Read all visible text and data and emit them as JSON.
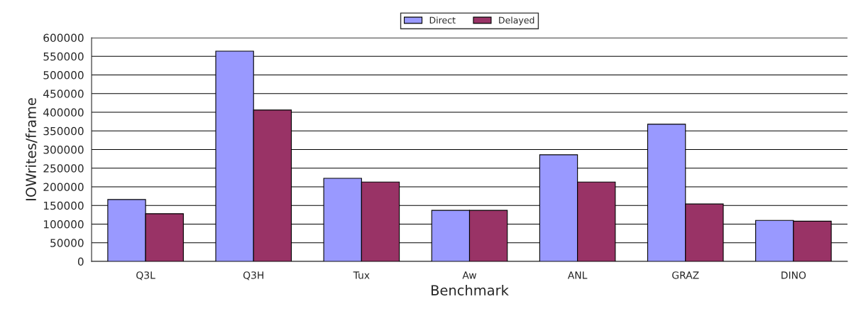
{
  "chart_data": {
    "type": "bar",
    "xlabel": "Benchmark",
    "ylabel": "IOWrites/frame",
    "categories": [
      "Q3L",
      "Q3H",
      "Tux",
      "Aw",
      "ANL",
      "GRAZ",
      "DINO"
    ],
    "series": [
      {
        "name": "Direct",
        "color": "#9999ff",
        "values": [
          166000,
          564000,
          223000,
          137000,
          286000,
          368000,
          110000
        ]
      },
      {
        "name": "Delayed",
        "color": "#993366",
        "values": [
          128000,
          406000,
          213000,
          137000,
          213000,
          154000,
          108000
        ]
      }
    ],
    "ylim": [
      0,
      600000
    ],
    "yticks": [
      0,
      50000,
      100000,
      150000,
      200000,
      250000,
      300000,
      350000,
      400000,
      450000,
      500000,
      550000,
      600000
    ],
    "grid": "y",
    "legend": "top"
  }
}
